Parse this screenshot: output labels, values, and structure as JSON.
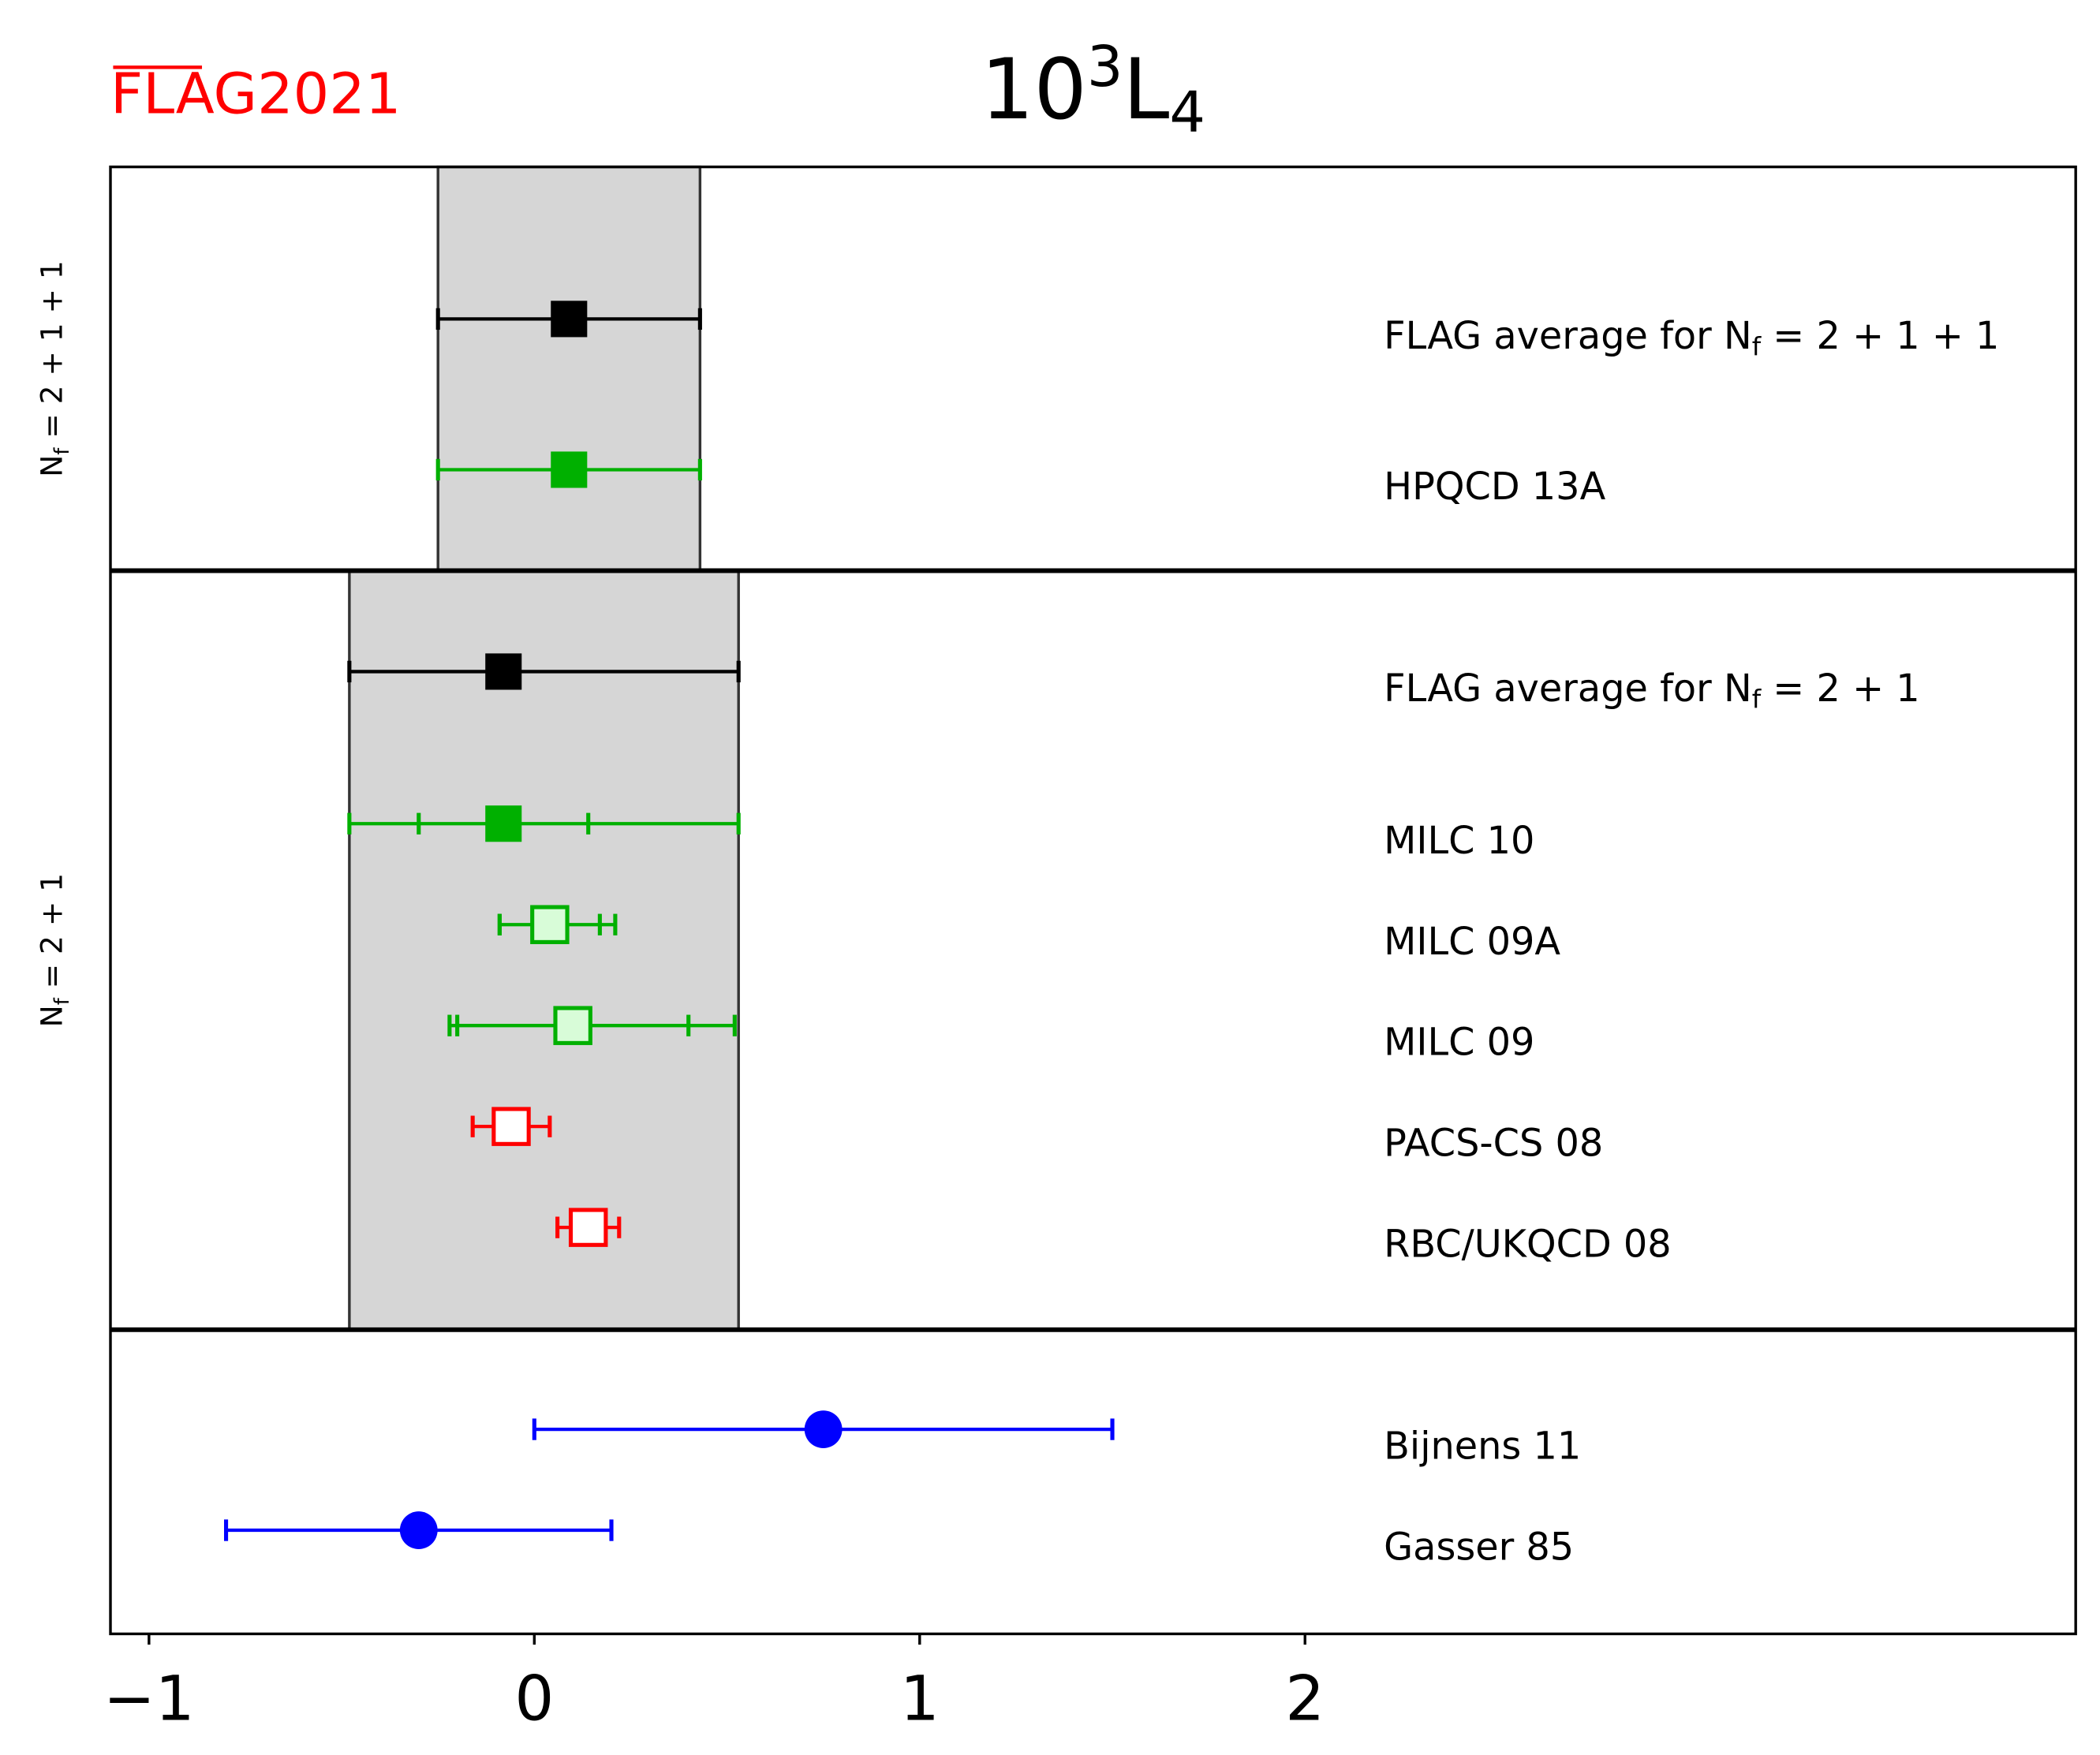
{
  "chart_data": {
    "type": "scatter",
    "title": "10",
    "title_sup": "3",
    "title_main": "L",
    "title_sub": "4",
    "logo": {
      "text": "FLAG2021",
      "color": "#ff0000"
    },
    "xlim": [
      -1.1,
      4.0
    ],
    "xticks": [
      -1,
      0,
      1,
      2
    ],
    "xtick_labels": [
      "−1",
      "0",
      "1",
      "2"
    ],
    "grid": false,
    "panels": [
      {
        "label": "N",
        "label_sub": "f",
        "label_rest": " = 2 + 1 + 1",
        "band": [
          -0.25,
          0.43
        ]
      },
      {
        "label": "N",
        "label_sub": "f",
        "label_rest": " = 2 + 1",
        "band": [
          -0.48,
          0.53
        ]
      },
      {
        "label": "",
        "band": null
      }
    ],
    "points": [
      {
        "panel": 0,
        "label": "FLAG average for N",
        "label_sub": "f",
        "label_rest": " = 2 + 1 + 1",
        "value": 0.09,
        "stat": null,
        "err_lo": 0.34,
        "err_hi": 0.34,
        "color": "#000000",
        "marker": "square",
        "fill": "#000000"
      },
      {
        "panel": 0,
        "label": "HPQCD 13A",
        "value": 0.09,
        "stat": null,
        "err_lo": 0.34,
        "err_hi": 0.34,
        "color": "#00b000",
        "marker": "square",
        "fill": "#00b000"
      },
      {
        "panel": 1,
        "label": "FLAG average for N",
        "label_sub": "f",
        "label_rest": " = 2 + 1",
        "value": -0.08,
        "stat": null,
        "err_lo": 0.4,
        "err_hi": 0.61,
        "color": "#000000",
        "marker": "square",
        "fill": "#000000"
      },
      {
        "panel": 1,
        "label": "MILC 10",
        "value": -0.08,
        "stat": 0.22,
        "err_lo": 0.4,
        "err_hi": 0.61,
        "color": "#00b000",
        "marker": "square",
        "fill": "#00b000"
      },
      {
        "panel": 1,
        "label": "MILC 09A",
        "value": 0.04,
        "stat": 0.13,
        "err_lo": 0.13,
        "err_hi": 0.17,
        "color": "#00b000",
        "marker": "square",
        "fill": "#d8fcd8"
      },
      {
        "panel": 1,
        "label": "MILC 09",
        "value": 0.1,
        "stat": 0.3,
        "err_lo": 0.32,
        "err_hi": 0.42,
        "color": "#00b000",
        "marker": "square",
        "fill": "#d8fcd8"
      },
      {
        "panel": 1,
        "label": "PACS-CS 08",
        "value": -0.06,
        "stat": null,
        "err_lo": 0.1,
        "err_hi": 0.1,
        "color": "#ff0000",
        "marker": "square",
        "fill": "#ffffff"
      },
      {
        "panel": 1,
        "label": "RBC/UKQCD 08",
        "value": 0.14,
        "stat": null,
        "err_lo": 0.08,
        "err_hi": 0.08,
        "color": "#ff0000",
        "marker": "square",
        "fill": "#ffffff"
      },
      {
        "panel": 2,
        "label": "Bijnens 11",
        "value": 0.75,
        "stat": null,
        "err_lo": 0.75,
        "err_hi": 0.75,
        "color": "#0000ff",
        "marker": "circle",
        "fill": "#0000ff"
      },
      {
        "panel": 2,
        "label": "Gasser 85",
        "value": -0.3,
        "stat": null,
        "err_lo": 0.5,
        "err_hi": 0.5,
        "color": "#0000ff",
        "marker": "circle",
        "fill": "#0000ff"
      }
    ]
  }
}
